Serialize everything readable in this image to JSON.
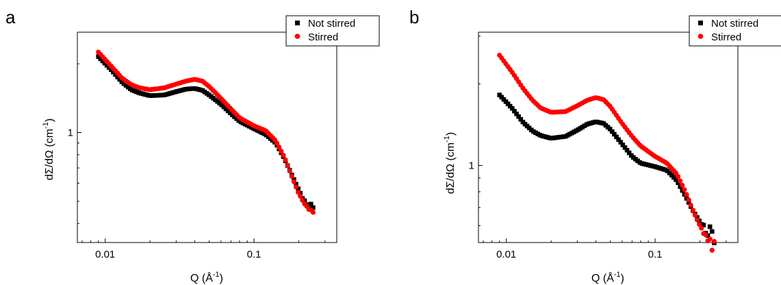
{
  "figure": {
    "panel_letters": [
      "a",
      "b"
    ]
  },
  "chart_data": [
    {
      "panel": "a",
      "type": "scatter",
      "x_scale": "log",
      "y_scale": "log",
      "xlabel_main": "Q (Å",
      "xlabel_sup": "-1",
      "xlabel_end": ")",
      "ylabel_main": "dΣ/dΩ (cm",
      "ylabel_sup": "-1",
      "ylabel_end": ")",
      "xlim": [
        0.0065,
        0.36
      ],
      "ylim": [
        0.33,
        2.75
      ],
      "x_ticks": [
        {
          "value": 0.01,
          "label": "0.01"
        },
        {
          "value": 0.1,
          "label": "0.1"
        }
      ],
      "y_ticks": [
        {
          "value": 1,
          "label": "1"
        }
      ],
      "legend": {
        "position": "top-right"
      },
      "series": [
        {
          "name": "Not stirred",
          "color": "#000000",
          "marker": "square",
          "curve": {
            "x": [
              0.009,
              0.011,
              0.013,
              0.015,
              0.017,
              0.02,
              0.025,
              0.03,
              0.035,
              0.04,
              0.045,
              0.05,
              0.06,
              0.07,
              0.08,
              0.1,
              0.12,
              0.14,
              0.16,
              0.18,
              0.2,
              0.22,
              0.24,
              0.25
            ],
            "y": [
              2.15,
              1.88,
              1.66,
              1.54,
              1.49,
              1.45,
              1.46,
              1.51,
              1.55,
              1.56,
              1.53,
              1.46,
              1.33,
              1.21,
              1.12,
              1.04,
              0.98,
              0.9,
              0.77,
              0.65,
              0.56,
              0.5,
              0.46,
              0.45
            ]
          }
        },
        {
          "name": "Stirred",
          "color": "#ff0000",
          "marker": "circle",
          "curve": {
            "x": [
              0.009,
              0.011,
              0.013,
              0.015,
              0.017,
              0.02,
              0.025,
              0.03,
              0.035,
              0.04,
              0.045,
              0.05,
              0.06,
              0.07,
              0.08,
              0.1,
              0.12,
              0.14,
              0.16,
              0.18,
              0.2,
              0.22,
              0.24,
              0.25
            ],
            "y": [
              2.25,
              1.95,
              1.73,
              1.62,
              1.57,
              1.54,
              1.57,
              1.63,
              1.68,
              1.71,
              1.68,
              1.59,
              1.41,
              1.27,
              1.16,
              1.07,
              1.02,
              0.92,
              0.78,
              0.64,
              0.54,
              0.48,
              0.45,
              0.42
            ]
          }
        }
      ]
    },
    {
      "panel": "b",
      "type": "scatter",
      "x_scale": "log",
      "y_scale": "log",
      "xlabel_main": "Q (Å",
      "xlabel_sup": "-1",
      "xlabel_end": ")",
      "ylabel_main": "dΣ/dΩ (cm",
      "ylabel_sup": "-1",
      "ylabel_end": ")",
      "xlim": [
        0.0065,
        0.36
      ],
      "ylim": [
        0.52,
        3.1
      ],
      "x_ticks": [
        {
          "value": 0.01,
          "label": "0.01"
        },
        {
          "value": 0.1,
          "label": "0.1"
        }
      ],
      "y_ticks": [
        {
          "value": 1,
          "label": "1"
        }
      ],
      "legend": {
        "position": "top-right"
      },
      "series": [
        {
          "name": "Not stirred",
          "color": "#000000",
          "marker": "square",
          "curve": {
            "x": [
              0.009,
              0.011,
              0.013,
              0.015,
              0.017,
              0.02,
              0.025,
              0.03,
              0.035,
              0.04,
              0.045,
              0.05,
              0.06,
              0.07,
              0.08,
              0.1,
              0.12,
              0.14,
              0.16,
              0.18,
              0.2,
              0.22,
              0.24,
              0.25
            ],
            "y": [
              1.82,
              1.62,
              1.44,
              1.34,
              1.29,
              1.26,
              1.28,
              1.35,
              1.42,
              1.45,
              1.43,
              1.36,
              1.2,
              1.08,
              1.02,
              0.99,
              0.96,
              0.88,
              0.77,
              0.68,
              0.62,
              0.58,
              0.56,
              0.56
            ]
          }
        },
        {
          "name": "Stirred",
          "color": "#ff0000",
          "marker": "circle",
          "curve": {
            "x": [
              0.009,
              0.011,
              0.013,
              0.015,
              0.017,
              0.02,
              0.025,
              0.03,
              0.035,
              0.04,
              0.045,
              0.05,
              0.06,
              0.07,
              0.08,
              0.1,
              0.12,
              0.14,
              0.16,
              0.18,
              0.2,
              0.22,
              0.24,
              0.25
            ],
            "y": [
              2.55,
              2.2,
              1.92,
              1.74,
              1.63,
              1.57,
              1.58,
              1.66,
              1.74,
              1.78,
              1.75,
              1.65,
              1.43,
              1.28,
              1.18,
              1.08,
              1.02,
              0.93,
              0.8,
              0.68,
              0.6,
              0.55,
              0.52,
              0.5
            ]
          }
        }
      ]
    }
  ]
}
